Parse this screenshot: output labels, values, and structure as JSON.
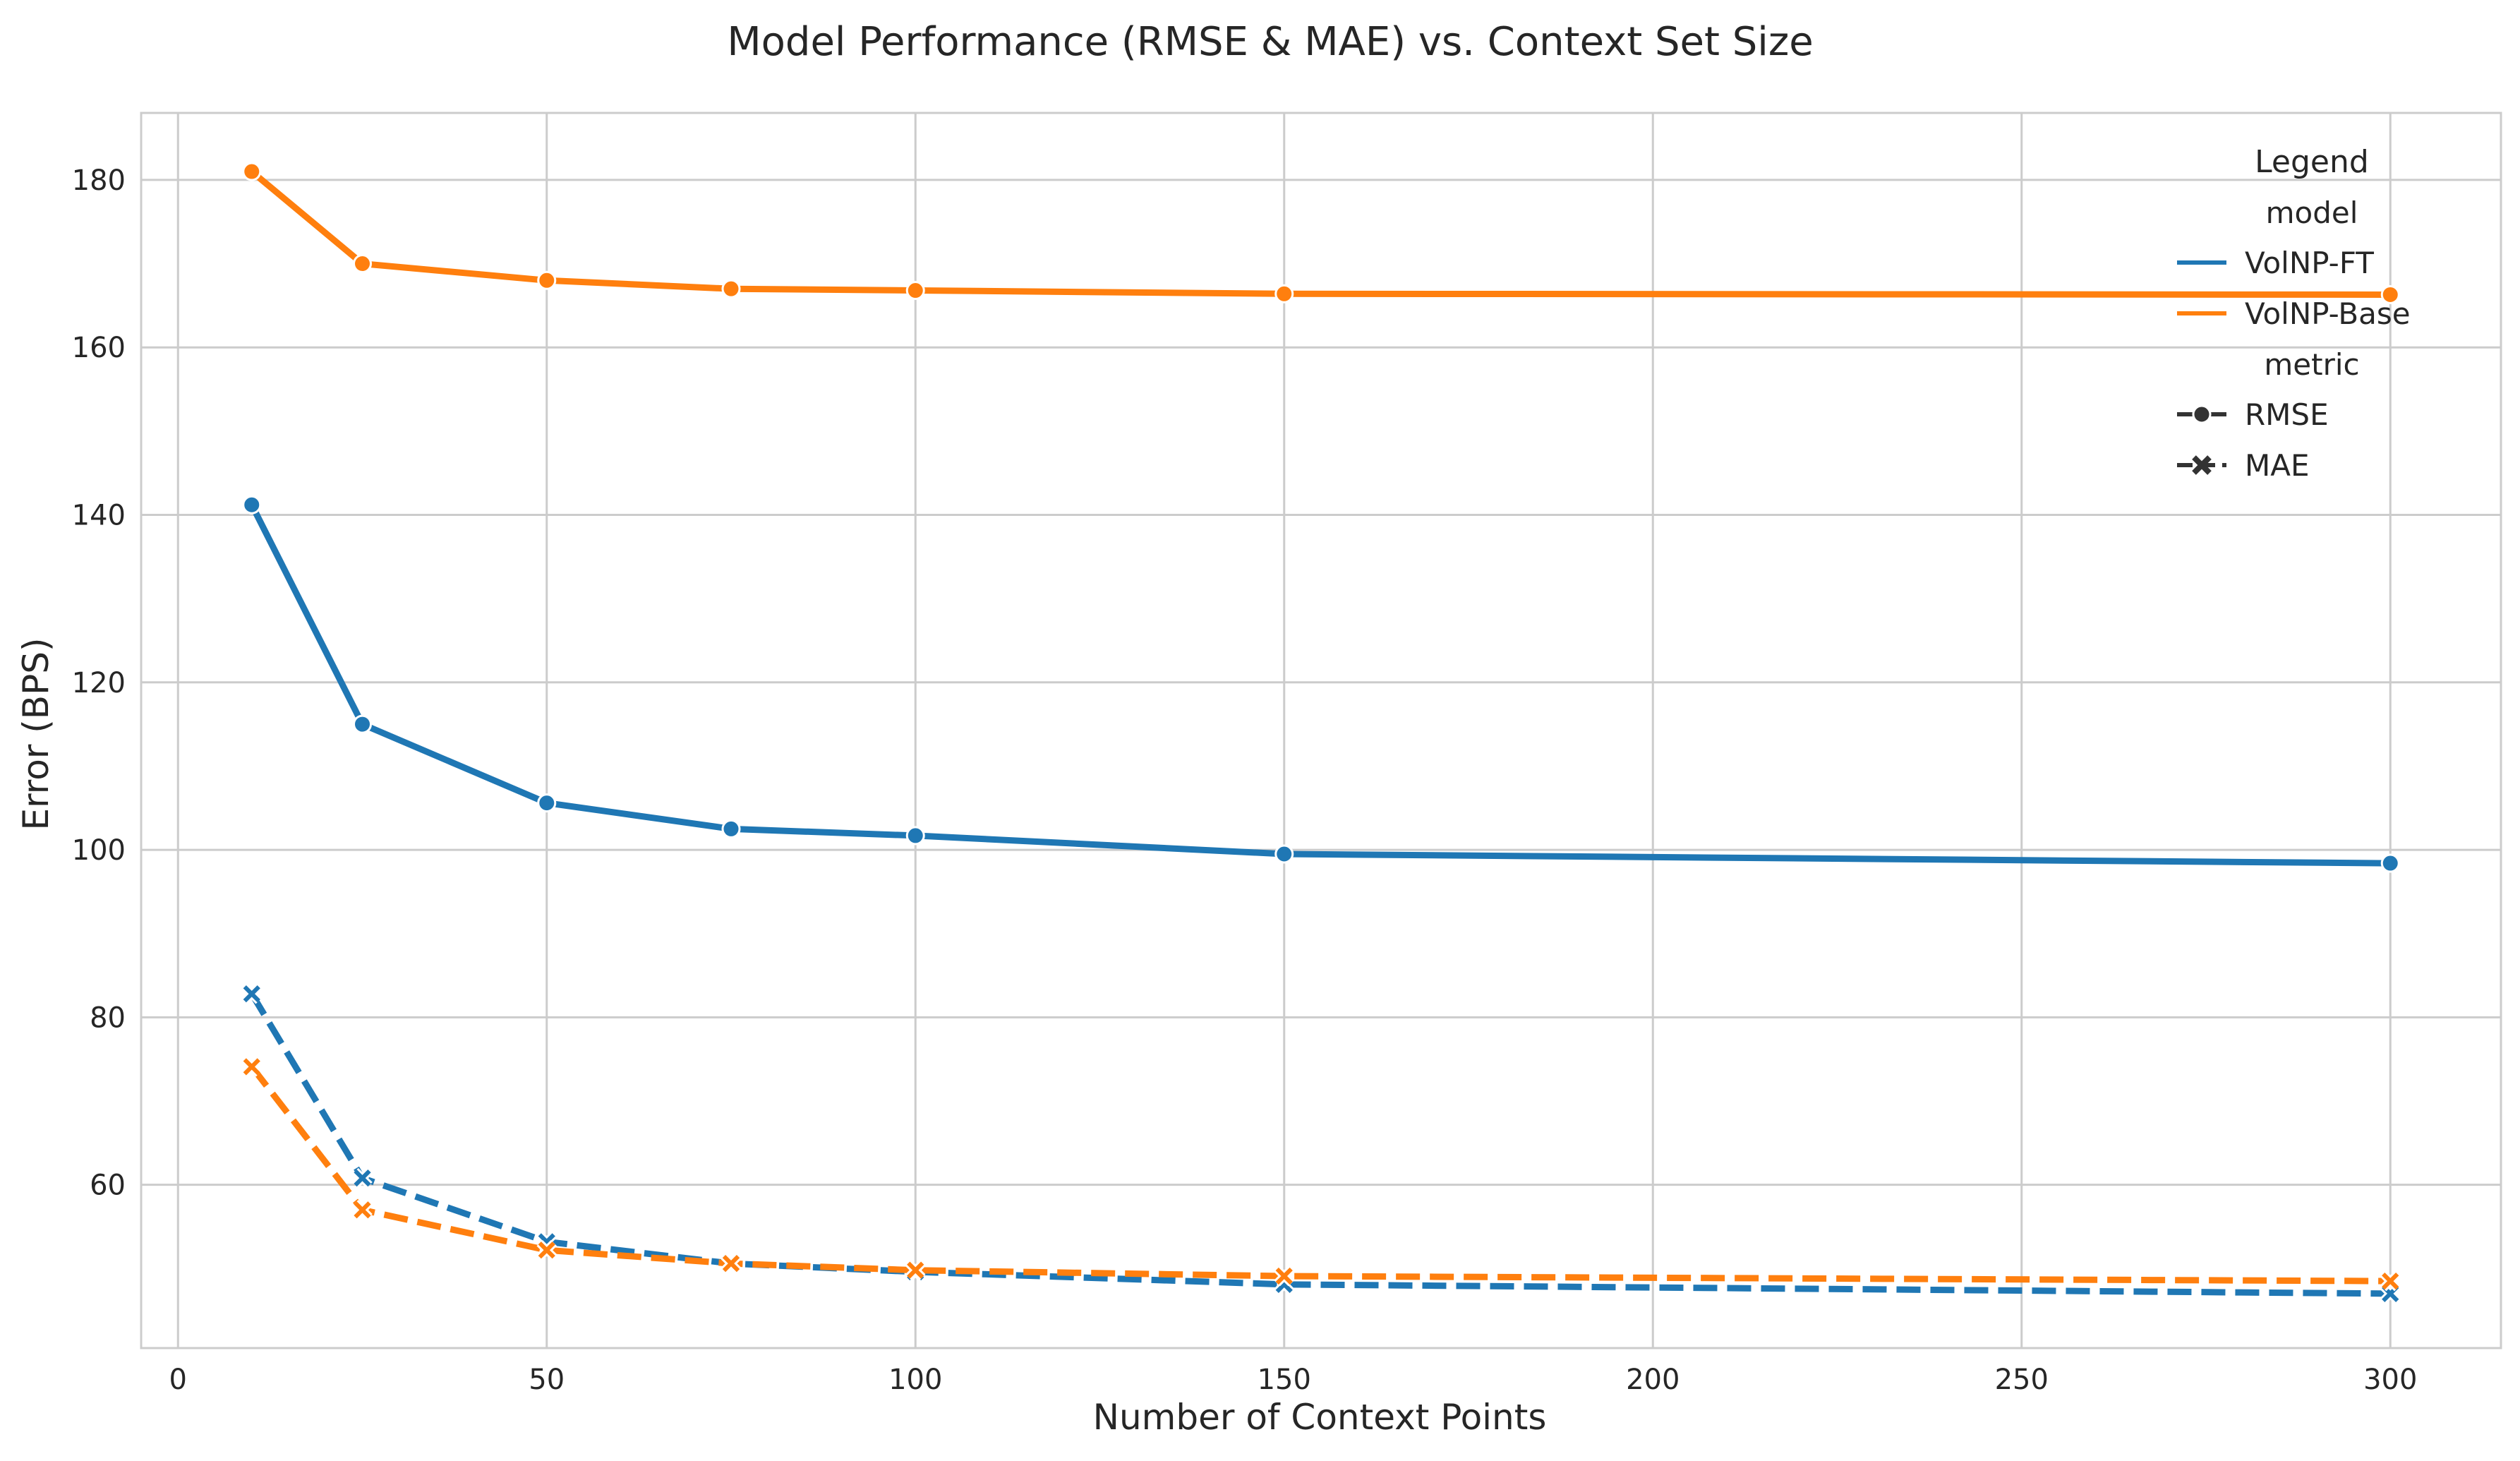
{
  "chart_data": {
    "type": "line",
    "title": "Model Performance (RMSE & MAE) vs. Context Set Size",
    "xlabel": "Number of Context Points",
    "ylabel": "Error (BPS)",
    "xlim": [
      -5,
      315
    ],
    "ylim": [
      40.5,
      188
    ],
    "x_ticks": [
      0,
      50,
      100,
      150,
      200,
      250,
      300
    ],
    "y_ticks": [
      60,
      80,
      100,
      120,
      140,
      160,
      180
    ],
    "x": [
      10,
      25,
      50,
      75,
      100,
      150,
      300
    ],
    "series": [
      {
        "name": "VolNP-Base RMSE",
        "model": "VolNP-Base",
        "metric": "RMSE",
        "color": "#ff7f0e",
        "values": [
          181.0,
          170.0,
          168.0,
          167.0,
          166.8,
          166.4,
          166.3
        ]
      },
      {
        "name": "VolNP-FT RMSE",
        "model": "VolNP-FT",
        "metric": "RMSE",
        "color": "#1f77b4",
        "values": [
          141.2,
          115.0,
          105.6,
          102.5,
          101.7,
          99.5,
          98.4
        ]
      },
      {
        "name": "VolNP-FT MAE",
        "model": "VolNP-FT",
        "metric": "MAE",
        "color": "#1f77b4",
        "values": [
          82.8,
          60.8,
          53.2,
          50.6,
          49.6,
          48.1,
          47.0
        ]
      },
      {
        "name": "VolNP-Base MAE",
        "model": "VolNP-Base",
        "metric": "MAE",
        "color": "#ff7f0e",
        "values": [
          74.1,
          57.0,
          52.2,
          50.6,
          49.8,
          49.1,
          48.5
        ]
      }
    ],
    "legend": {
      "title": "Legend",
      "placement": "top-right",
      "model_header": "model",
      "metric_header": "metric",
      "models": [
        {
          "label": "VolNP-FT",
          "color": "#1f77b4"
        },
        {
          "label": "VolNP-Base",
          "color": "#ff7f0e"
        }
      ],
      "metrics": [
        {
          "label": "RMSE",
          "marker": "circle",
          "dash": "solid"
        },
        {
          "label": "MAE",
          "marker": "x",
          "dash": "dashed"
        }
      ]
    }
  }
}
